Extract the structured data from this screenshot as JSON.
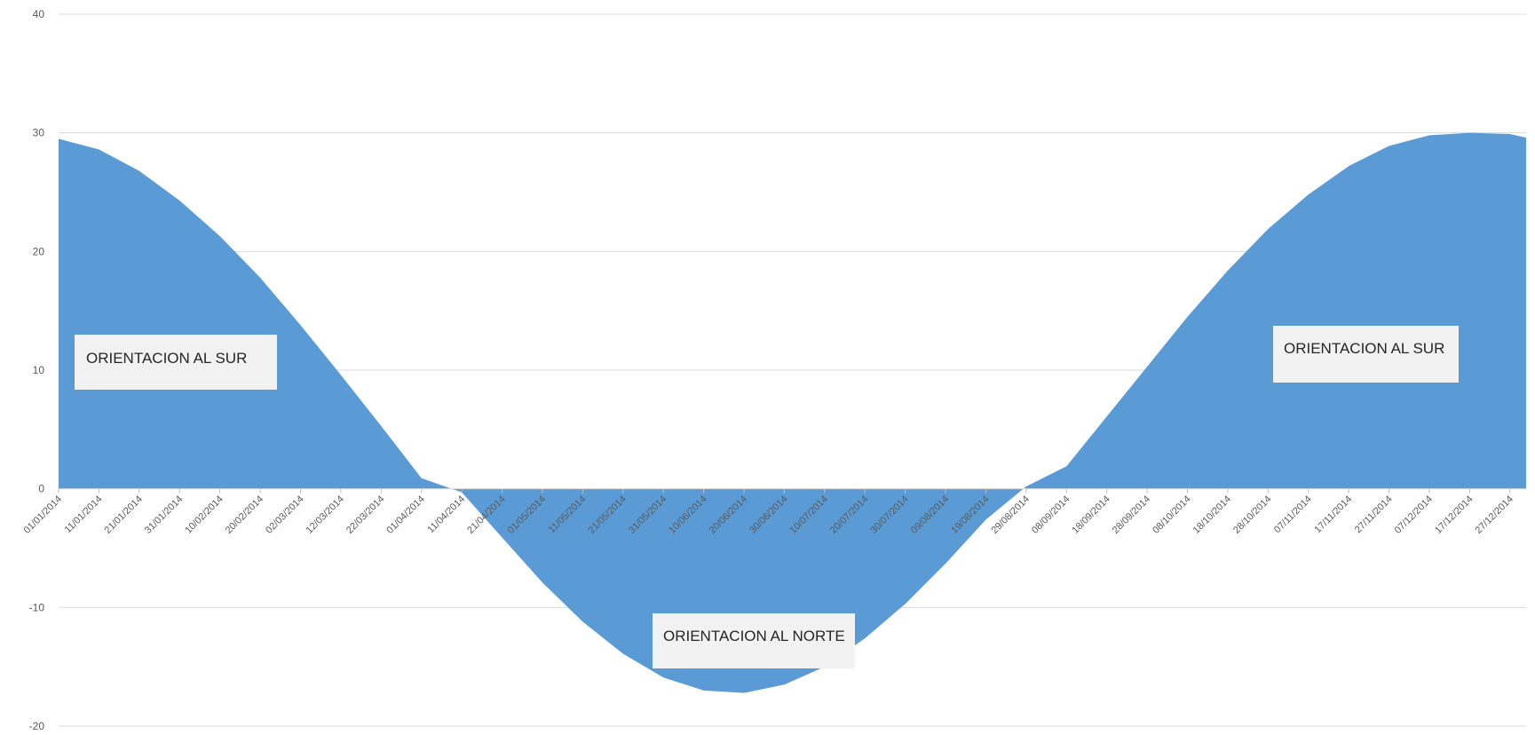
{
  "chart_data": {
    "type": "area",
    "title": "",
    "xlabel": "",
    "ylabel": "",
    "ylim": [
      -20,
      40
    ],
    "yticks": [
      -20,
      -10,
      0,
      10,
      20,
      30,
      40
    ],
    "grid": true,
    "legend": "none",
    "color": "#5b9bd5",
    "x_range": [
      "01/01/2014",
      "31/12/2014"
    ],
    "x_tick_labels": [
      "01/01/2014",
      "11/01/2014",
      "21/01/2014",
      "31/01/2014",
      "10/02/2014",
      "20/02/2014",
      "02/03/2014",
      "12/03/2014",
      "22/03/2014",
      "01/04/2014",
      "11/04/2014",
      "21/04/2014",
      "01/05/2014",
      "11/05/2014",
      "21/05/2014",
      "31/05/2014",
      "10/06/2014",
      "20/06/2014",
      "30/06/2014",
      "10/07/2014",
      "20/07/2014",
      "30/07/2014",
      "09/08/2014",
      "19/08/2014",
      "29/08/2014",
      "08/09/2014",
      "18/09/2014",
      "28/09/2014",
      "08/10/2014",
      "18/10/2014",
      "28/10/2014",
      "07/11/2014",
      "17/11/2014",
      "27/11/2014",
      "07/12/2014",
      "17/12/2014",
      "27/12/2014"
    ],
    "x": [
      "01/01/2014",
      "11/01/2014",
      "21/01/2014",
      "31/01/2014",
      "10/02/2014",
      "20/02/2014",
      "02/03/2014",
      "12/03/2014",
      "22/03/2014",
      "01/04/2014",
      "11/04/2014",
      "21/04/2014",
      "01/05/2014",
      "11/05/2014",
      "21/05/2014",
      "31/05/2014",
      "10/06/2014",
      "20/06/2014",
      "30/06/2014",
      "10/07/2014",
      "20/07/2014",
      "30/07/2014",
      "09/08/2014",
      "19/08/2014",
      "29/08/2014",
      "08/09/2014",
      "18/09/2014",
      "28/09/2014",
      "08/10/2014",
      "18/10/2014",
      "28/10/2014",
      "07/11/2014",
      "17/11/2014",
      "27/11/2014",
      "07/12/2014",
      "17/12/2014",
      "27/12/2014",
      "31/12/2014"
    ],
    "values": [
      29.5,
      28.6,
      26.8,
      24.3,
      21.3,
      17.8,
      13.8,
      9.6,
      5.3,
      0.9,
      -0.3,
      -4.1,
      -7.9,
      -11.2,
      -13.9,
      -15.9,
      -17.0,
      -17.2,
      -16.5,
      -15.0,
      -12.6,
      -9.7,
      -6.3,
      -2.6,
      0.2,
      1.9,
      6.1,
      10.3,
      14.5,
      18.4,
      21.9,
      24.8,
      27.2,
      28.9,
      29.8,
      30.0,
      29.9,
      29.6
    ],
    "annotations": [
      "ORIENTACION AL SUR",
      "ORIENTACION AL NORTE",
      "ORIENTACION AL SUR"
    ]
  }
}
